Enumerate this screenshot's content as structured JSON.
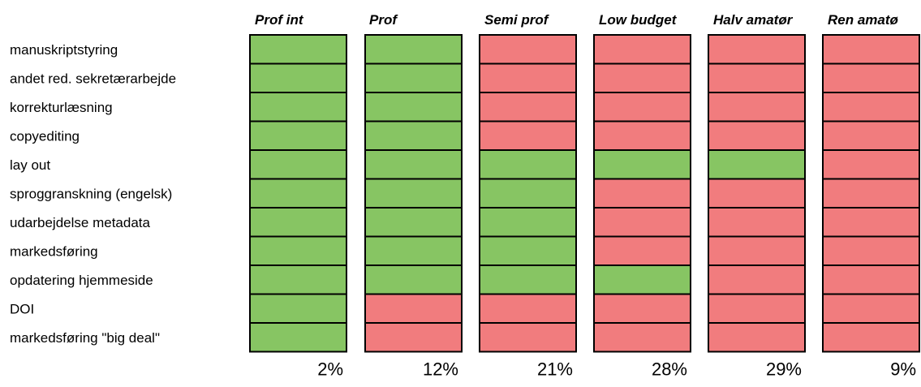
{
  "chart_data": {
    "type": "heatmap",
    "columns": [
      "Prof int",
      "Prof",
      "Semi prof",
      "Low budget",
      "Halv amatør",
      "Ren amatø"
    ],
    "rows": [
      "manuskriptstyring",
      "andet red. sekretærarbejde",
      "korrekturlæsning",
      "copyediting",
      "lay out",
      "sproggranskning (engelsk)",
      "udarbejdelse metadata",
      "markedsføring",
      "opdatering hjemmeside",
      "DOI",
      "markedsføring \"big deal\""
    ],
    "values": [
      [
        1,
        1,
        0,
        0,
        0,
        0
      ],
      [
        1,
        1,
        0,
        0,
        0,
        0
      ],
      [
        1,
        1,
        0,
        0,
        0,
        0
      ],
      [
        1,
        1,
        0,
        0,
        0,
        0
      ],
      [
        1,
        1,
        1,
        1,
        1,
        0
      ],
      [
        1,
        1,
        1,
        0,
        0,
        0
      ],
      [
        1,
        1,
        1,
        0,
        0,
        0
      ],
      [
        1,
        1,
        1,
        0,
        0,
        0
      ],
      [
        1,
        1,
        1,
        1,
        0,
        0
      ],
      [
        1,
        0,
        0,
        0,
        0,
        0
      ],
      [
        1,
        0,
        0,
        0,
        0,
        0
      ]
    ],
    "percentages": [
      "2%",
      "12%",
      "21%",
      "28%",
      "29%",
      "9%"
    ],
    "colors": {
      "yes": "#87c563",
      "no": "#f17c7e",
      "border": "#000000"
    }
  }
}
